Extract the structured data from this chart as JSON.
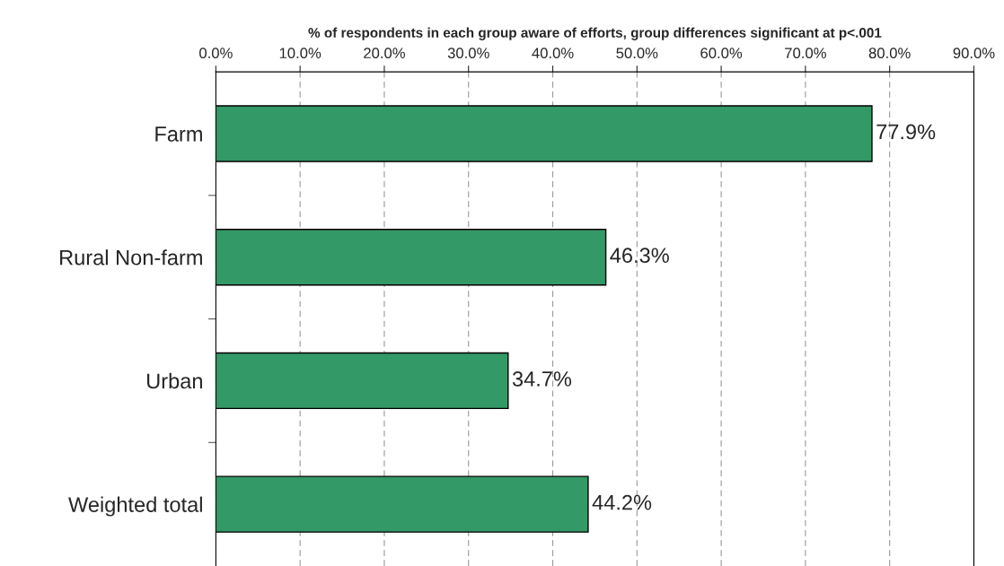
{
  "chart_data": {
    "type": "bar",
    "orientation": "horizontal",
    "xlabel": "% of respondents in each group aware of efforts, group differences significant at p<.001",
    "categories": [
      "Farm",
      "Rural Non-farm",
      "Urban",
      "Weighted total"
    ],
    "values": [
      77.9,
      46.3,
      34.7,
      44.2
    ],
    "value_labels": [
      "77.9%",
      "46.3%",
      "34.7%",
      "44.2%"
    ],
    "color": "#339966",
    "xlim": [
      0,
      90
    ],
    "xticks": [
      {
        "value": 0,
        "label": "0.0%"
      },
      {
        "value": 10,
        "label": "10.0%"
      },
      {
        "value": 20,
        "label": "20.0%"
      },
      {
        "value": 30,
        "label": "30.0%"
      },
      {
        "value": 40,
        "label": "40.0%"
      },
      {
        "value": 50,
        "label": "50.0%"
      },
      {
        "value": 60,
        "label": "60.0%"
      },
      {
        "value": 70,
        "label": "70.0%"
      },
      {
        "value": 80,
        "label": "80.0%"
      },
      {
        "value": 90,
        "label": "90.0%"
      }
    ],
    "grid": "x"
  }
}
